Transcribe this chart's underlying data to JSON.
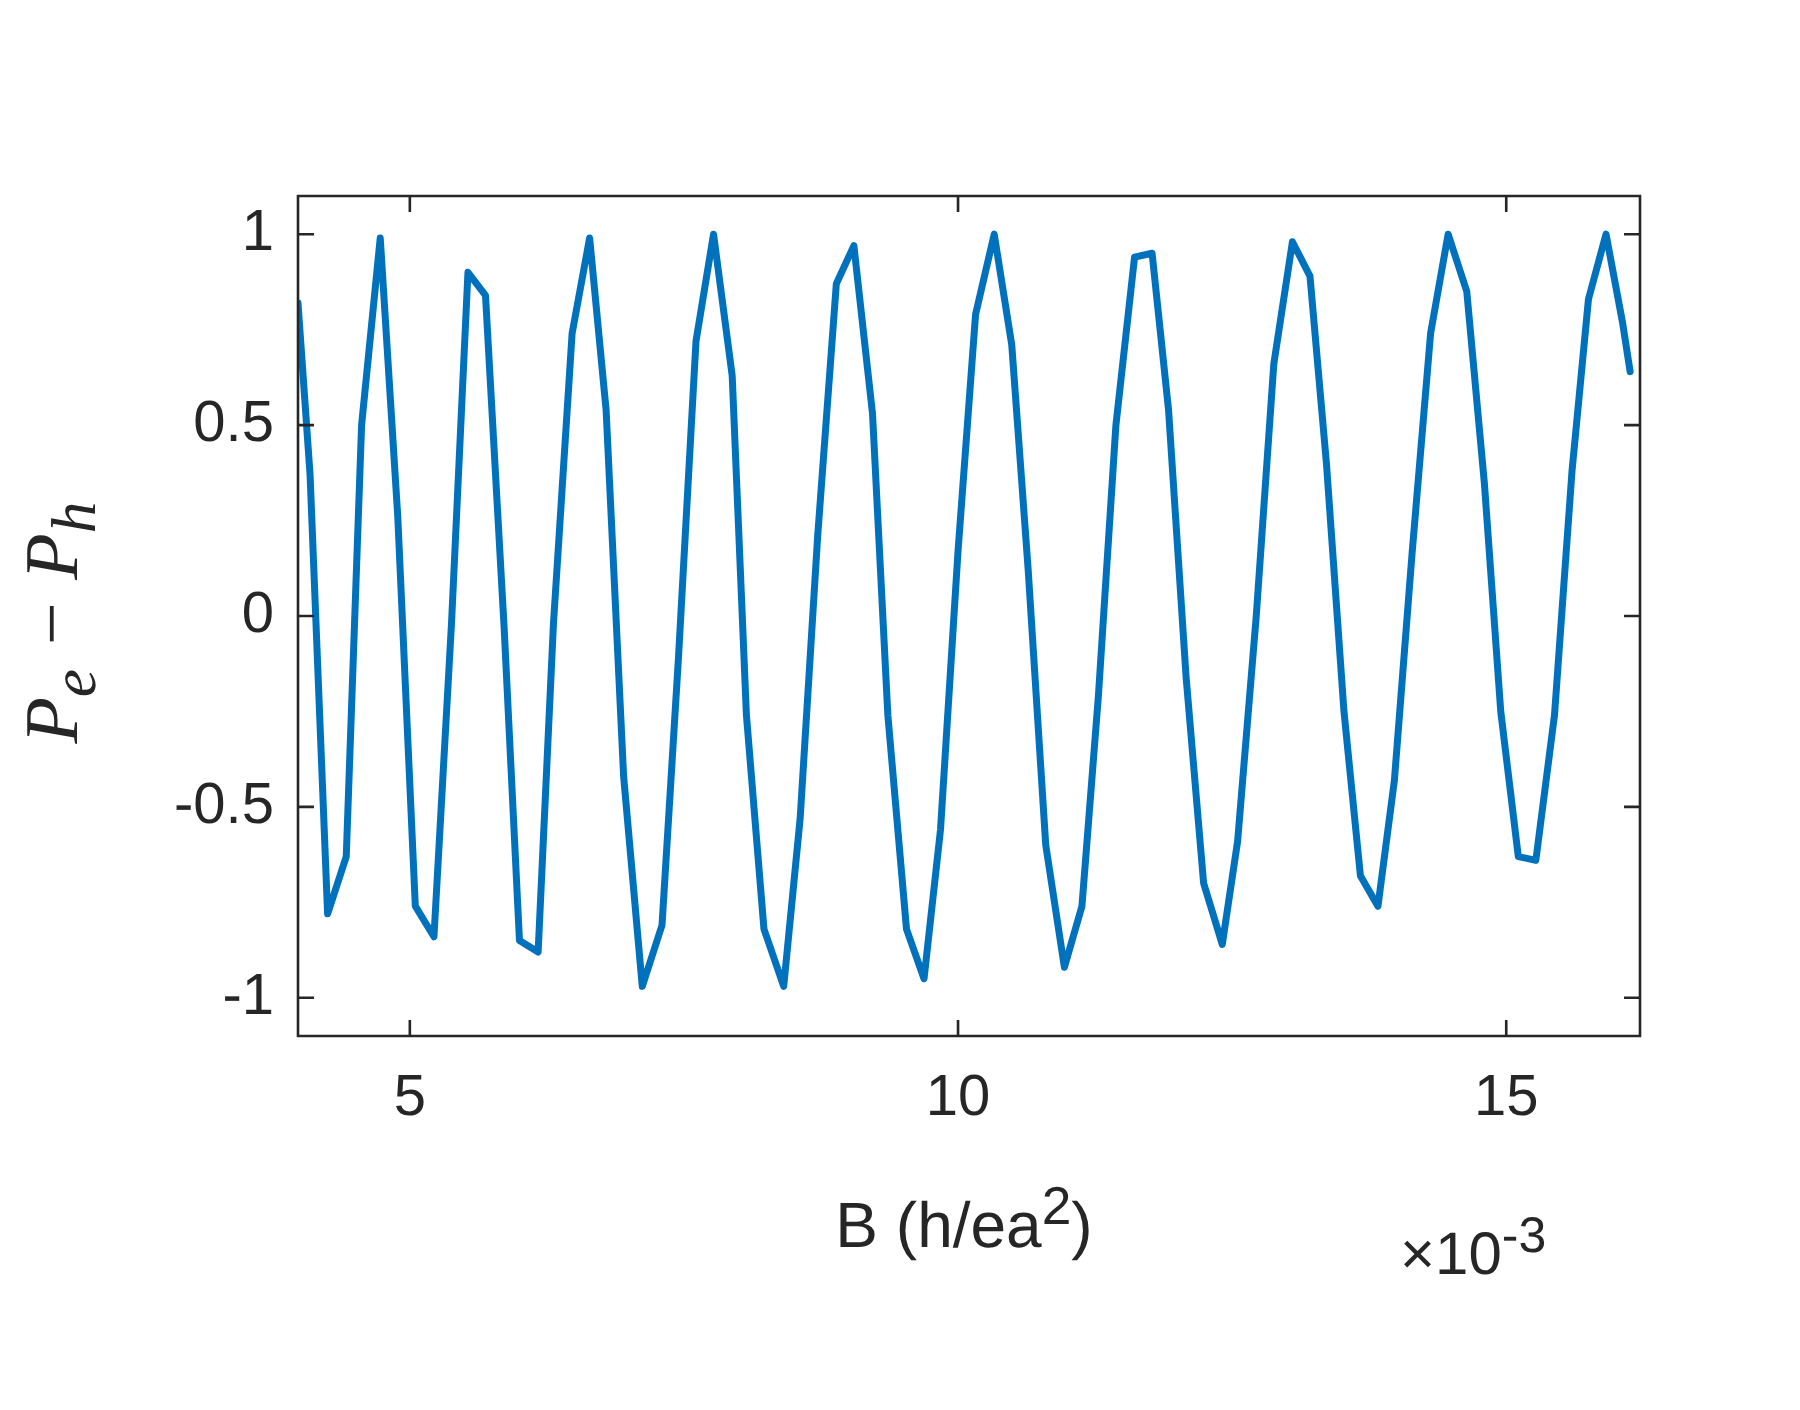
{
  "chart_data": {
    "type": "line",
    "xlabel": "B (h/ea$^{2}$)",
    "ylabel": "P$_{e}$ − P$_{h}$",
    "annotations": [
      "×10$^{-3}$"
    ],
    "x": [
      3.98,
      4.09,
      4.25,
      4.42,
      4.56,
      4.73,
      4.89,
      5.05,
      5.22,
      5.38,
      5.53,
      5.69,
      5.86,
      6.0,
      6.17,
      6.31,
      6.48,
      6.64,
      6.79,
      6.95,
      7.12,
      7.3,
      7.45,
      7.61,
      7.77,
      7.94,
      8.07,
      8.23,
      8.41,
      8.56,
      8.72,
      8.89,
      9.05,
      9.22,
      9.36,
      9.53,
      9.69,
      9.84,
      10.0,
      10.16,
      10.33,
      10.49,
      10.64,
      10.8,
      10.97,
      11.13,
      11.28,
      11.44,
      11.61,
      11.77,
      11.92,
      12.08,
      12.24,
      12.41,
      12.55,
      12.72,
      12.88,
      13.05,
      13.21,
      13.36,
      13.52,
      13.67,
      13.83,
      13.98,
      14.14,
      14.31,
      14.47,
      14.64,
      14.8,
      14.95,
      15.11,
      15.27,
      15.44,
      15.6,
      15.75,
      15.91,
      16.06,
      16.13
    ],
    "series": [
      {
        "color": "#0072bd",
        "values": [
          0.82,
          0.37,
          -0.78,
          -0.63,
          0.5,
          0.99,
          0.26,
          -0.76,
          -0.84,
          -0.02,
          0.9,
          0.84,
          -0.03,
          -0.85,
          -0.88,
          -0.02,
          0.74,
          0.99,
          0.54,
          -0.42,
          -0.97,
          -0.81,
          -0.11,
          0.72,
          1.0,
          0.63,
          -0.26,
          -0.82,
          -0.97,
          -0.53,
          0.21,
          0.87,
          0.97,
          0.53,
          -0.26,
          -0.82,
          -0.95,
          -0.56,
          0.17,
          0.79,
          1.0,
          0.71,
          0.12,
          -0.6,
          -0.92,
          -0.76,
          -0.21,
          0.5,
          0.94,
          0.95,
          0.54,
          -0.16,
          -0.7,
          -0.86,
          -0.59,
          0.0,
          0.66,
          0.98,
          0.89,
          0.4,
          -0.25,
          -0.68,
          -0.76,
          -0.43,
          0.16,
          0.74,
          1.0,
          0.85,
          0.35,
          -0.25,
          -0.63,
          -0.64,
          -0.26,
          0.38,
          0.83,
          1.0,
          0.77,
          0.64
        ]
      }
    ],
    "xlim": [
      3.98,
      16.22
    ],
    "xticks": [
      5,
      10,
      15
    ],
    "ylim": [
      -1.1,
      1.1
    ],
    "yticks": [
      -1,
      -0.5,
      0,
      0.5,
      1
    ],
    "grid": false,
    "legend": false,
    "marker": "none",
    "line_style": "solid"
  }
}
